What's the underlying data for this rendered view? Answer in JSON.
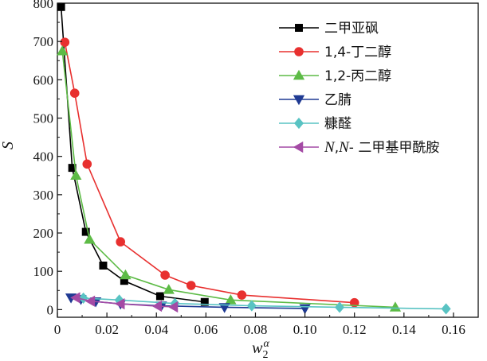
{
  "chart_data": {
    "type": "line",
    "title": "",
    "xlabel": "w",
    "xlabel_sub": "2",
    "xlabel_sup": "α",
    "ylabel": "S",
    "xlim": [
      0,
      0.17
    ],
    "ylim": [
      -20,
      800
    ],
    "x_ticks": [
      0,
      0.02,
      0.04,
      0.06,
      0.08,
      0.1,
      0.12,
      0.14,
      0.16
    ],
    "x_tick_labels": [
      "0",
      "0.02",
      "0.04",
      "0.06",
      "0.08",
      "0.10",
      "0.12",
      "0.14",
      "0.16"
    ],
    "y_ticks": [
      0,
      100,
      200,
      300,
      400,
      500,
      600,
      700,
      800
    ],
    "y_tick_labels": [
      "0",
      "100",
      "200",
      "300",
      "400",
      "500",
      "600",
      "700",
      "800"
    ],
    "grid": false,
    "legend_position": "top-right",
    "series": [
      {
        "name": "二甲亚砜",
        "color": "#000000",
        "marker": "square",
        "x": [
          0.0015,
          0.006,
          0.0115,
          0.0185,
          0.027,
          0.0415,
          0.0595
        ],
        "y": [
          790,
          370,
          203,
          115,
          75,
          35,
          20
        ]
      },
      {
        "name": "1,4-丁二醇",
        "color": "#e8302f",
        "marker": "circle",
        "x": [
          0.003,
          0.007,
          0.012,
          0.0255,
          0.0435,
          0.054,
          0.0745,
          0.12
        ],
        "y": [
          698,
          565,
          380,
          177,
          90,
          63,
          38,
          18
        ]
      },
      {
        "name": "1,2-丙二醇",
        "color": "#5dbb46",
        "marker": "triangle-up",
        "x": [
          0.002,
          0.0075,
          0.013,
          0.0275,
          0.045,
          0.07,
          0.1365
        ],
        "y": [
          675,
          350,
          183,
          90,
          52,
          25,
          6
        ]
      },
      {
        "name": "乙腈",
        "color": "#1f3a93",
        "marker": "triangle-down",
        "x": [
          0.0055,
          0.0095,
          0.0155,
          0.0255,
          0.042,
          0.0675,
          0.1
        ],
        "y": [
          31,
          27,
          21,
          15,
          10,
          6,
          3
        ]
      },
      {
        "name": "糠醛",
        "color": "#59c3c3",
        "marker": "diamond",
        "x": [
          0.0105,
          0.025,
          0.0475,
          0.0785,
          0.114,
          0.157
        ],
        "y": [
          30,
          25,
          16,
          10,
          6,
          2
        ]
      },
      {
        "name_italic": "N",
        "name_sep": ",",
        "name_italic2": "N",
        "name_rest": "- 二甲基甲酰胺",
        "color": "#a44aa5",
        "marker": "triangle-left",
        "x": [
          0.0075,
          0.0135,
          0.0255,
          0.0405,
          0.047
        ],
        "y": [
          31,
          22,
          15,
          9,
          7
        ]
      }
    ]
  }
}
